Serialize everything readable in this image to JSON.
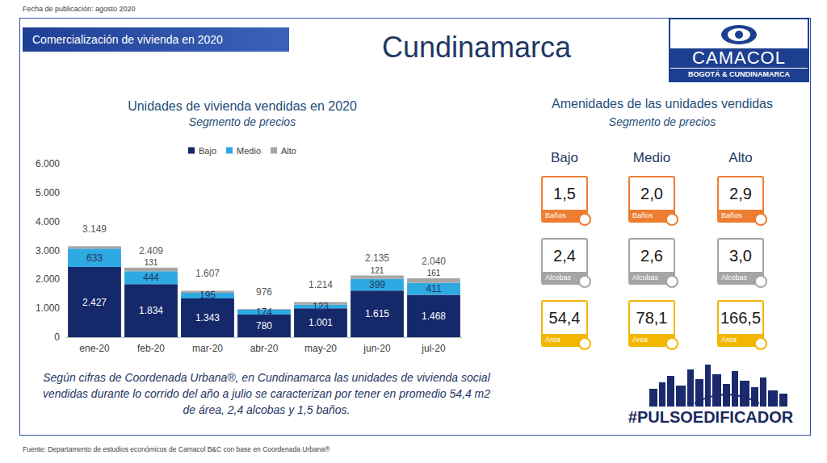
{
  "header": {
    "date": "Fecha de publicación: agosto 2020",
    "section": "Comercialización de vivienda en 2020",
    "region": "Cundinamarca",
    "logo": {
      "name": "CAMACOL",
      "subtitle": "BOGOTÁ & CUNDINAMARCA"
    }
  },
  "chart_data": {
    "type": "bar",
    "title": "Unidades de vivienda vendidas en 2020",
    "subtitle": "Segmento de precios",
    "categories": [
      "ene-20",
      "feb-20",
      "mar-20",
      "abr-20",
      "may-20",
      "jun-20",
      "jul-20"
    ],
    "series": [
      {
        "name": "Bajo",
        "color": "#14286a",
        "values": [
          2427,
          1834,
          1343,
          780,
          1001,
          1615,
          1468
        ],
        "value_labels": [
          "2.427",
          "1.834",
          "1.343",
          "780",
          "1.001",
          "1.615",
          "1.468"
        ]
      },
      {
        "name": "Medio",
        "color": "#2fa9e1",
        "values": [
          633,
          444,
          195,
          174,
          123,
          399,
          411
        ],
        "value_labels": [
          "633",
          "444",
          "195",
          "174",
          "123",
          "399",
          "411"
        ]
      },
      {
        "name": "Alto",
        "color": "#a6a6a6",
        "values": [
          89,
          131,
          69,
          22,
          90,
          121,
          161
        ],
        "value_labels": [
          null,
          "131",
          null,
          null,
          null,
          "121",
          "161"
        ]
      }
    ],
    "totals": [
      3149,
      2409,
      1607,
      976,
      1214,
      2135,
      2040
    ],
    "total_labels": [
      "3.149",
      "2.409",
      "1.607",
      "976",
      "1.214",
      "2.135",
      "2.040"
    ],
    "stacked": true,
    "data_labels": true,
    "legend": "top",
    "grid": false,
    "ylim": [
      0,
      6000
    ],
    "yticks": [
      0,
      {
        "value": 1000,
        "label": "1.000"
      },
      {
        "value": 2000,
        "label": "2.000"
      },
      {
        "value": 3000,
        "label": "3.000"
      },
      {
        "value": 4000,
        "label": "4.000"
      },
      {
        "value": 5000,
        "label": "5.000"
      },
      {
        "value": 6000,
        "label": "6.000"
      }
    ]
  },
  "amenities": {
    "title": "Amenidades de las unidades vendidas",
    "subtitle": "Segmento de precios",
    "columns": [
      {
        "name": "Bajo",
        "items": [
          {
            "label": "Baños",
            "value": 1.5,
            "value_label": "1,5"
          },
          {
            "label": "Alcobas",
            "value": 2.4,
            "value_label": "2,4"
          },
          {
            "label": "Área",
            "value": 54.4,
            "value_label": "54,4"
          }
        ]
      },
      {
        "name": "Medio",
        "items": [
          {
            "label": "Baños",
            "value": 2.0,
            "value_label": "2,0"
          },
          {
            "label": "Alcobas",
            "value": 2.6,
            "value_label": "2,6"
          },
          {
            "label": "Área",
            "value": 78.1,
            "value_label": "78,1"
          }
        ]
      },
      {
        "name": "Alto",
        "items": [
          {
            "label": "Baños",
            "value": 2.9,
            "value_label": "2,9"
          },
          {
            "label": "Alcobas",
            "value": 3.0,
            "value_label": "3,0"
          },
          {
            "label": "Área",
            "value": 166.5,
            "value_label": "166,5"
          }
        ]
      }
    ]
  },
  "note": "Según cifras de Coordenada Urbana®, en Cundinamarca las unidades de vivienda social vendidas durante lo corrido del año a julio se caracterizan por tener en promedio 54,4 m2 de área, 2,4 alcobas y 1,5 baños.",
  "hashtag": "#PULSOEDIFICADOR",
  "source": "Fuente: Departamento de estudios económicos de Camacol B&C con base en Coordenada Urbana®"
}
